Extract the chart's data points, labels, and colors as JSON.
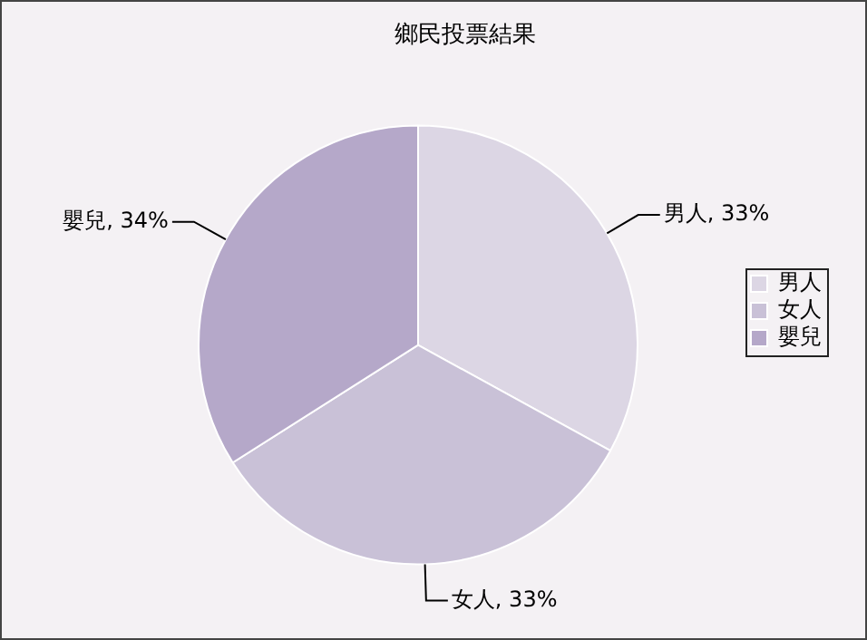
{
  "chart_data": {
    "type": "pie",
    "title": "鄉民投票結果",
    "categories": [
      "男人",
      "女人",
      "嬰兒"
    ],
    "values": [
      33,
      33,
      34
    ],
    "value_labels": [
      "男人, 33%",
      "女人, 33%",
      "嬰兒, 34%"
    ],
    "colors": [
      "#dcd6e4",
      "#c9c1d7",
      "#b5a8c9"
    ],
    "legend": "right"
  }
}
